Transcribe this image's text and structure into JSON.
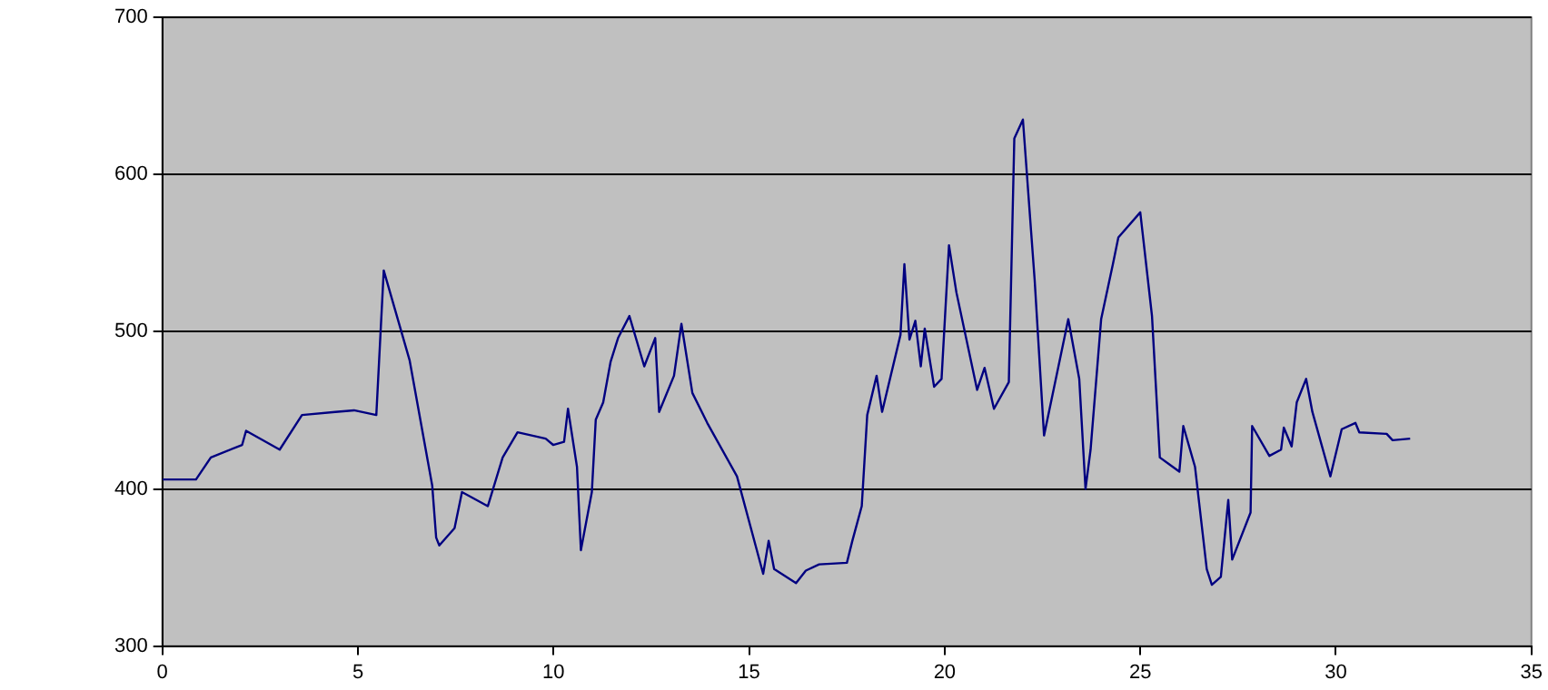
{
  "chart_data": {
    "type": "line",
    "x": [
      0,
      0.86,
      1.24,
      2.04,
      2.14,
      3.0,
      3.57,
      4.42,
      4.9,
      5.47,
      5.66,
      6.32,
      6.9,
      7.0,
      7.08,
      7.47,
      7.66,
      8.32,
      8.7,
      9.08,
      9.8,
      9.99,
      10.27,
      10.37,
      10.6,
      10.7,
      10.98,
      11.08,
      11.27,
      11.46,
      11.65,
      11.94,
      12.32,
      12.6,
      12.7,
      13.08,
      13.27,
      13.55,
      13.93,
      14.69,
      15.36,
      15.5,
      15.64,
      16.2,
      16.45,
      16.79,
      17.5,
      17.64,
      17.88,
      18.02,
      18.26,
      18.4,
      18.87,
      18.97,
      19.1,
      19.25,
      19.39,
      19.49,
      19.73,
      19.92,
      20.11,
      20.3,
      20.83,
      21.02,
      21.26,
      21.64,
      21.78,
      22.0,
      22.3,
      22.54,
      23.16,
      23.44,
      23.6,
      23.73,
      24.0,
      24.3,
      24.44,
      25.0,
      25.3,
      25.5,
      26.0,
      26.1,
      26.4,
      26.7,
      26.83,
      27.06,
      27.25,
      27.35,
      27.82,
      27.86,
      28.3,
      28.6,
      28.67,
      28.87,
      29.0,
      29.24,
      29.4,
      29.86,
      30.15,
      30.5,
      30.6,
      31.3,
      31.45,
      31.9
    ],
    "series": [
      {
        "color": "#000080",
        "values": [
          406,
          406,
          420,
          428,
          437,
          425,
          447,
          449,
          450,
          447,
          539,
          482,
          402,
          369,
          364,
          375,
          398,
          389,
          420,
          436,
          432,
          428,
          430,
          451,
          414,
          361,
          398,
          444,
          455,
          481,
          496,
          510,
          478,
          496,
          449,
          472,
          505,
          461,
          442,
          408,
          346,
          367,
          349,
          340,
          348,
          352,
          353,
          367,
          389,
          447,
          472,
          449,
          498,
          543,
          495,
          507,
          478,
          502,
          465,
          470,
          555,
          525,
          463,
          477,
          451,
          468,
          623,
          635,
          533,
          434,
          508,
          470,
          400,
          425,
          508,
          543,
          560,
          576,
          510,
          420,
          411,
          440,
          414,
          349,
          339,
          344,
          393,
          355,
          385,
          440,
          421,
          425,
          439,
          427,
          455,
          470,
          449,
          408,
          438,
          442,
          436,
          435,
          431,
          432
        ]
      }
    ],
    "xlim": [
      0,
      35
    ],
    "xticks": [
      0,
      5,
      10,
      15,
      20,
      25,
      30,
      35
    ],
    "ylim": [
      300,
      700
    ],
    "yticks": [
      300,
      400,
      500,
      600,
      700
    ],
    "grid": "y",
    "legend": false,
    "marker": "none",
    "line_style": "solid"
  }
}
